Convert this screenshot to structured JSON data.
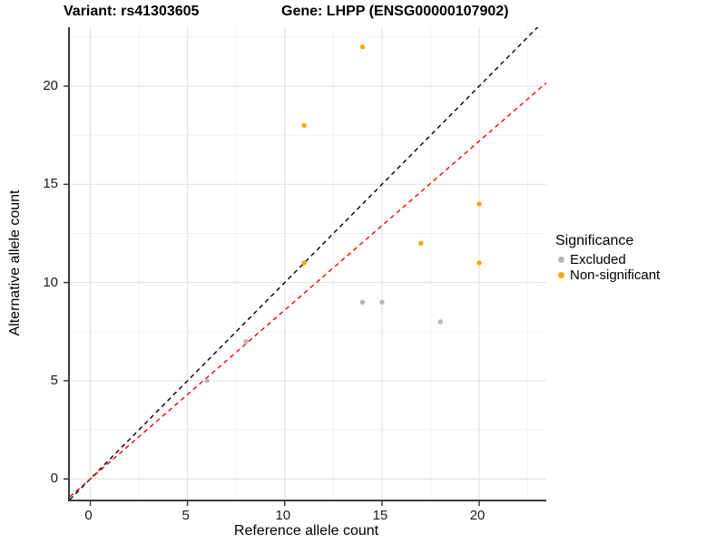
{
  "title": {
    "variant": "Variant: rs41303605",
    "gene": "Gene: LHPP (ENSG00000107902)"
  },
  "axes": {
    "x_label": "Reference allele count",
    "y_label": "Alternative allele count"
  },
  "legend": {
    "title": "Significance",
    "items": [
      {
        "label": "Excluded",
        "color": "#b8b8b8"
      },
      {
        "label": "Non-significant",
        "color": "#ffa500"
      }
    ]
  },
  "chart_data": {
    "type": "scatter",
    "title": "Variant: rs41303605    Gene: LHPP (ENSG00000107902)",
    "xlabel": "Reference allele count",
    "ylabel": "Alternative allele count",
    "xlim": [
      -1.05,
      23.45
    ],
    "ylim": [
      -1.05,
      23.0
    ],
    "x_ticks": [
      0,
      5,
      10,
      15,
      20
    ],
    "y_ticks": [
      0,
      5,
      10,
      15,
      20
    ],
    "x_minor_ticks": [
      2.5,
      7.5,
      12.5,
      17.5,
      22.5
    ],
    "y_minor_ticks": [
      2.5,
      7.5,
      12.5,
      17.5,
      22.5
    ],
    "grid": true,
    "legend_position": "right",
    "colors": {
      "major_grid": "#e4e4e4",
      "minor_grid": "#f2f2f2",
      "axis_line": "#3c3c3c",
      "identity_line": "#000000",
      "ratio_line": "#ff0000"
    },
    "series": [
      {
        "name": "Excluded",
        "color": "#b8b8b8",
        "points": [
          [
            6,
            5
          ],
          [
            8,
            7
          ],
          [
            14,
            9
          ],
          [
            15,
            9
          ],
          [
            18,
            8
          ]
        ]
      },
      {
        "name": "Non-significant",
        "color": "#ffa500",
        "points": [
          [
            11,
            11
          ],
          [
            11,
            18
          ],
          [
            14,
            22
          ],
          [
            17,
            12
          ],
          [
            20,
            11
          ],
          [
            20,
            14
          ]
        ]
      }
    ],
    "reference_lines": [
      {
        "name": "identity",
        "slope": 1,
        "intercept": 0,
        "color": "#000000",
        "style": "dashed"
      },
      {
        "name": "expected-ratio",
        "slope": 0.86,
        "intercept": 0,
        "color": "#ff0000",
        "style": "dashed"
      }
    ]
  }
}
